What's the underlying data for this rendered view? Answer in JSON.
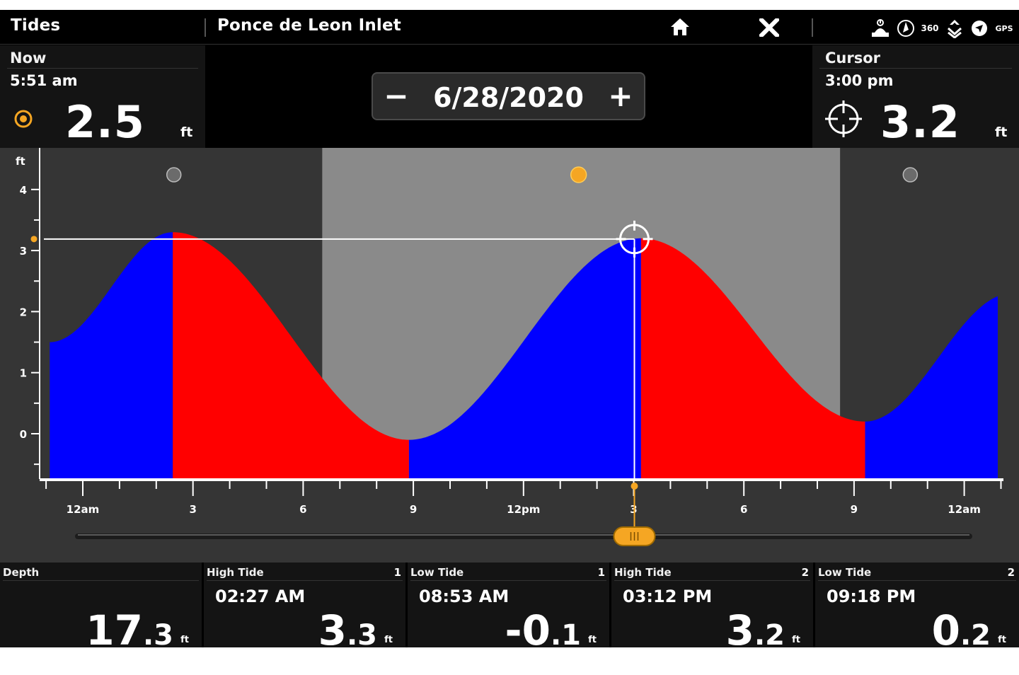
{
  "topbar": {
    "app_title": "Tides",
    "location": "Ponce de Leon Inlet",
    "home_icon": "home-icon",
    "close_icon": "close-icon",
    "status_icons": [
      "sonar-icon",
      "compass-icon",
      "360-icon",
      "depth-icon",
      "navigation-icon",
      "gps-icon"
    ],
    "status_360": "360",
    "status_gps": "GPS"
  },
  "now_panel": {
    "label": "Now",
    "time": "5:51 am",
    "value": "2.5",
    "unit": "ft"
  },
  "date_control": {
    "minus": "−",
    "date": "6/28/2020",
    "plus": "+"
  },
  "cursor_panel": {
    "label": "Cursor",
    "time": "3:00 pm",
    "value": "3.2",
    "unit": "ft"
  },
  "colors": {
    "flood": "#0000ff",
    "ebb": "#ff0000",
    "night": "#353535",
    "day": "#8a8a8a",
    "accent": "#f5a623"
  },
  "chart_data": {
    "type": "area",
    "ylabel": "ft",
    "y_ticks": [
      "4",
      "3",
      "2",
      "1",
      "0"
    ],
    "ylim": [
      -0.7,
      4.5
    ],
    "x_range_hours": [
      -1,
      25.5
    ],
    "x_tick_labels": [
      "12am",
      "3",
      "6",
      "9",
      "12pm",
      "3",
      "6",
      "9",
      "12am"
    ],
    "x_tick_hours": [
      0,
      3,
      6,
      9,
      12,
      15,
      18,
      21,
      24
    ],
    "tide_points": [
      {
        "hour": -0.9,
        "ft": 1.5
      },
      {
        "hour": 2.45,
        "ft": 3.3
      },
      {
        "hour": 8.88,
        "ft": -0.1
      },
      {
        "hour": 15.2,
        "ft": 3.2
      },
      {
        "hour": 21.3,
        "ft": 0.2
      },
      {
        "hour": 25.3,
        "ft": 2.3
      }
    ],
    "daylight_hours": [
      6.5,
      20.6
    ],
    "sun_marker_hour": 13.5,
    "moon_marker_hours": [
      2.75,
      22.8
    ],
    "cursor": {
      "hour": 15.0,
      "ft": 3.2
    }
  },
  "tide_table": {
    "depth": {
      "label": "Depth",
      "whole": "17",
      "dec": ".3",
      "unit": "ft"
    },
    "entries": [
      {
        "label": "High Tide",
        "index": "1",
        "time": "02:27 AM",
        "whole": "3",
        "dec": ".3",
        "unit": "ft"
      },
      {
        "label": "Low Tide",
        "index": "1",
        "time": "08:53 AM",
        "whole": "-0",
        "dec": ".1",
        "unit": "ft"
      },
      {
        "label": "High Tide",
        "index": "2",
        "time": "03:12 PM",
        "whole": "3",
        "dec": ".2",
        "unit": "ft"
      },
      {
        "label": "Low Tide",
        "index": "2",
        "time": "09:18 PM",
        "whole": "0",
        "dec": ".2",
        "unit": "ft"
      }
    ]
  }
}
